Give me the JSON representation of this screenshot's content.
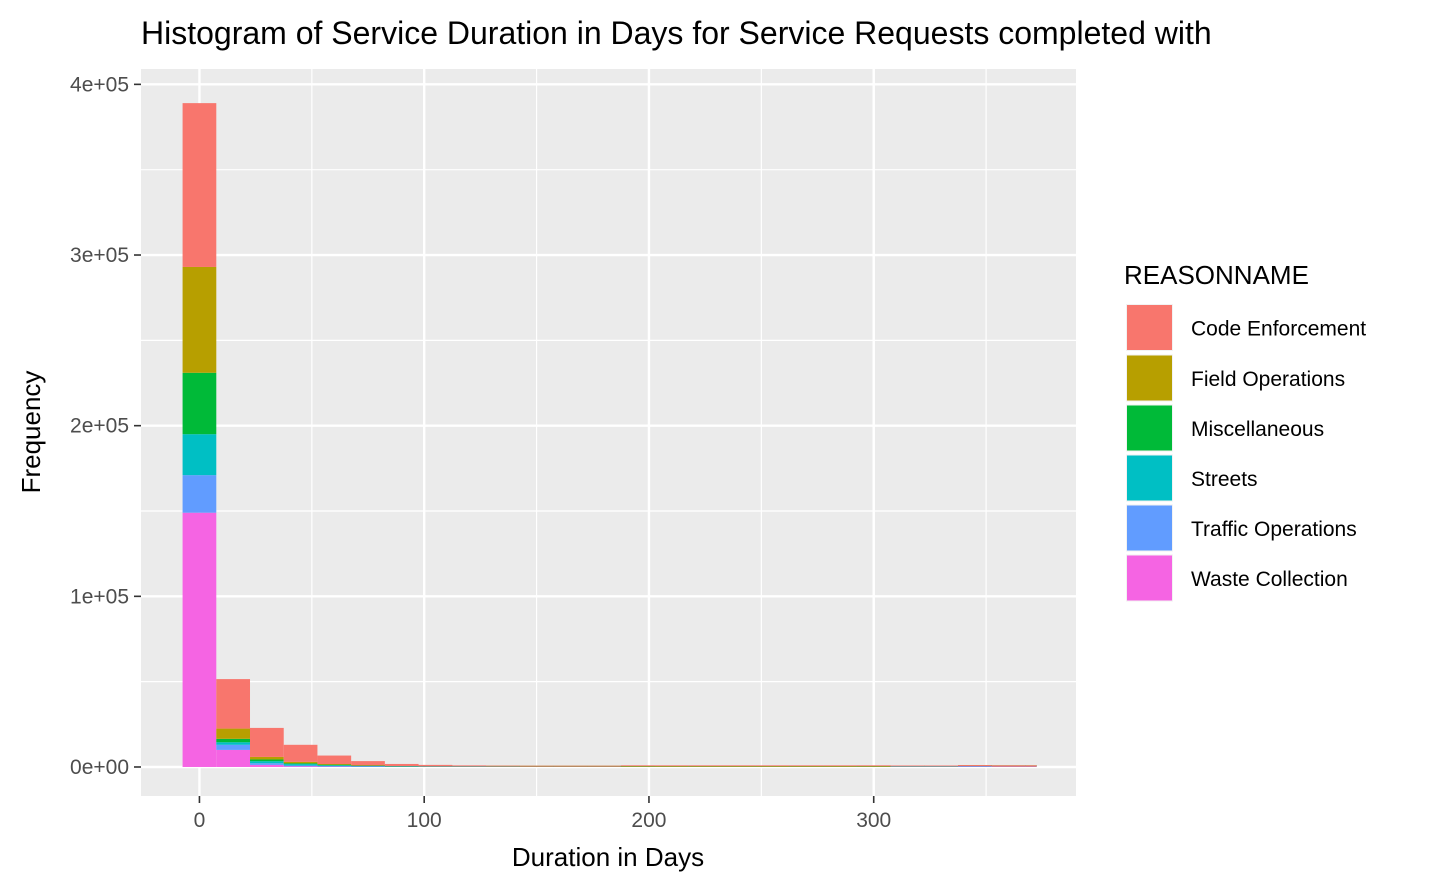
{
  "chart_data": {
    "type": "bar",
    "subtype": "stacked-histogram",
    "title": "Histogram of Service Duration in Days for Service Requests completed with",
    "xlabel": "Duration in Days",
    "ylabel": "Frequency",
    "xlim": [
      -26,
      390
    ],
    "ylim": [
      -17000,
      409000
    ],
    "x_ticks": [
      0,
      100,
      200,
      300
    ],
    "x_tick_labels": [
      "0",
      "100",
      "200",
      "300"
    ],
    "x_minor_ticks": [
      50,
      150,
      250,
      350
    ],
    "y_ticks": [
      0,
      100000,
      200000,
      300000,
      400000
    ],
    "y_tick_labels": [
      "0e+00",
      "1e+05",
      "2e+05",
      "3e+05",
      "4e+05"
    ],
    "y_minor_ticks": [
      50000,
      150000,
      250000,
      350000
    ],
    "grid": true,
    "bin_width": 15,
    "bins": [
      [
        -7.5,
        7.5
      ],
      [
        7.5,
        22.5
      ],
      [
        22.5,
        37.5
      ],
      [
        37.5,
        52.5
      ],
      [
        52.5,
        67.5
      ],
      [
        67.5,
        82.5
      ],
      [
        82.5,
        97.5
      ],
      [
        97.5,
        112.5
      ],
      [
        112.5,
        127.5
      ],
      [
        127.5,
        142.5
      ],
      [
        142.5,
        157.5
      ],
      [
        157.5,
        172.5
      ],
      [
        172.5,
        187.5
      ],
      [
        187.5,
        202.5
      ],
      [
        202.5,
        217.5
      ],
      [
        217.5,
        232.5
      ],
      [
        232.5,
        247.5
      ],
      [
        247.5,
        262.5
      ],
      [
        262.5,
        277.5
      ],
      [
        277.5,
        292.5
      ],
      [
        292.5,
        307.5
      ],
      [
        307.5,
        322.5
      ],
      [
        322.5,
        337.5
      ],
      [
        337.5,
        352.5
      ],
      [
        352.5,
        367.5
      ],
      [
        367.5,
        372.5
      ]
    ],
    "legend_title": "REASONNAME",
    "legend_position": "right",
    "stack_order": "Waste Collection at bottom, Code Enforcement at top",
    "series": [
      {
        "name": "Code Enforcement",
        "color": "#F8766D",
        "values": [
          96000,
          29000,
          17000,
          10000,
          5000,
          2500,
          1200,
          800,
          600,
          300,
          200,
          150,
          100,
          100,
          80,
          60,
          50,
          40,
          30,
          30,
          30,
          30,
          30,
          30,
          30,
          30
        ]
      },
      {
        "name": "Field Operations",
        "color": "#B79F00",
        "values": [
          62000,
          6000,
          1500,
          800,
          400,
          200,
          100,
          80,
          60,
          50,
          40,
          40,
          40,
          300,
          300,
          300,
          300,
          300,
          300,
          300,
          300,
          30,
          20,
          20,
          20,
          20
        ]
      },
      {
        "name": "Miscellaneous",
        "color": "#00BA38",
        "values": [
          36000,
          2000,
          1000,
          500,
          300,
          150,
          100,
          60,
          50,
          40,
          30,
          30,
          30,
          30,
          30,
          30,
          30,
          30,
          30,
          30,
          30,
          30,
          30,
          30,
          30,
          30
        ]
      },
      {
        "name": "Streets",
        "color": "#00BFC4",
        "values": [
          24000,
          1500,
          1200,
          800,
          500,
          300,
          200,
          150,
          120,
          100,
          80,
          80,
          80,
          60,
          40,
          40,
          40,
          40,
          40,
          40,
          60,
          200,
          200,
          200,
          40,
          40
        ]
      },
      {
        "name": "Traffic Operations",
        "color": "#619CFF",
        "values": [
          22000,
          3000,
          1000,
          500,
          300,
          200,
          100,
          80,
          60,
          50,
          40,
          40,
          40,
          40,
          40,
          40,
          40,
          40,
          40,
          40,
          40,
          60,
          60,
          60,
          60,
          60
        ]
      },
      {
        "name": "Waste Collection",
        "color": "#F564E3",
        "values": [
          149000,
          10000,
          1200,
          400,
          200,
          100,
          80,
          60,
          50,
          40,
          30,
          30,
          30,
          30,
          30,
          30,
          30,
          30,
          30,
          30,
          30,
          30,
          30,
          300,
          300,
          300
        ]
      }
    ]
  }
}
